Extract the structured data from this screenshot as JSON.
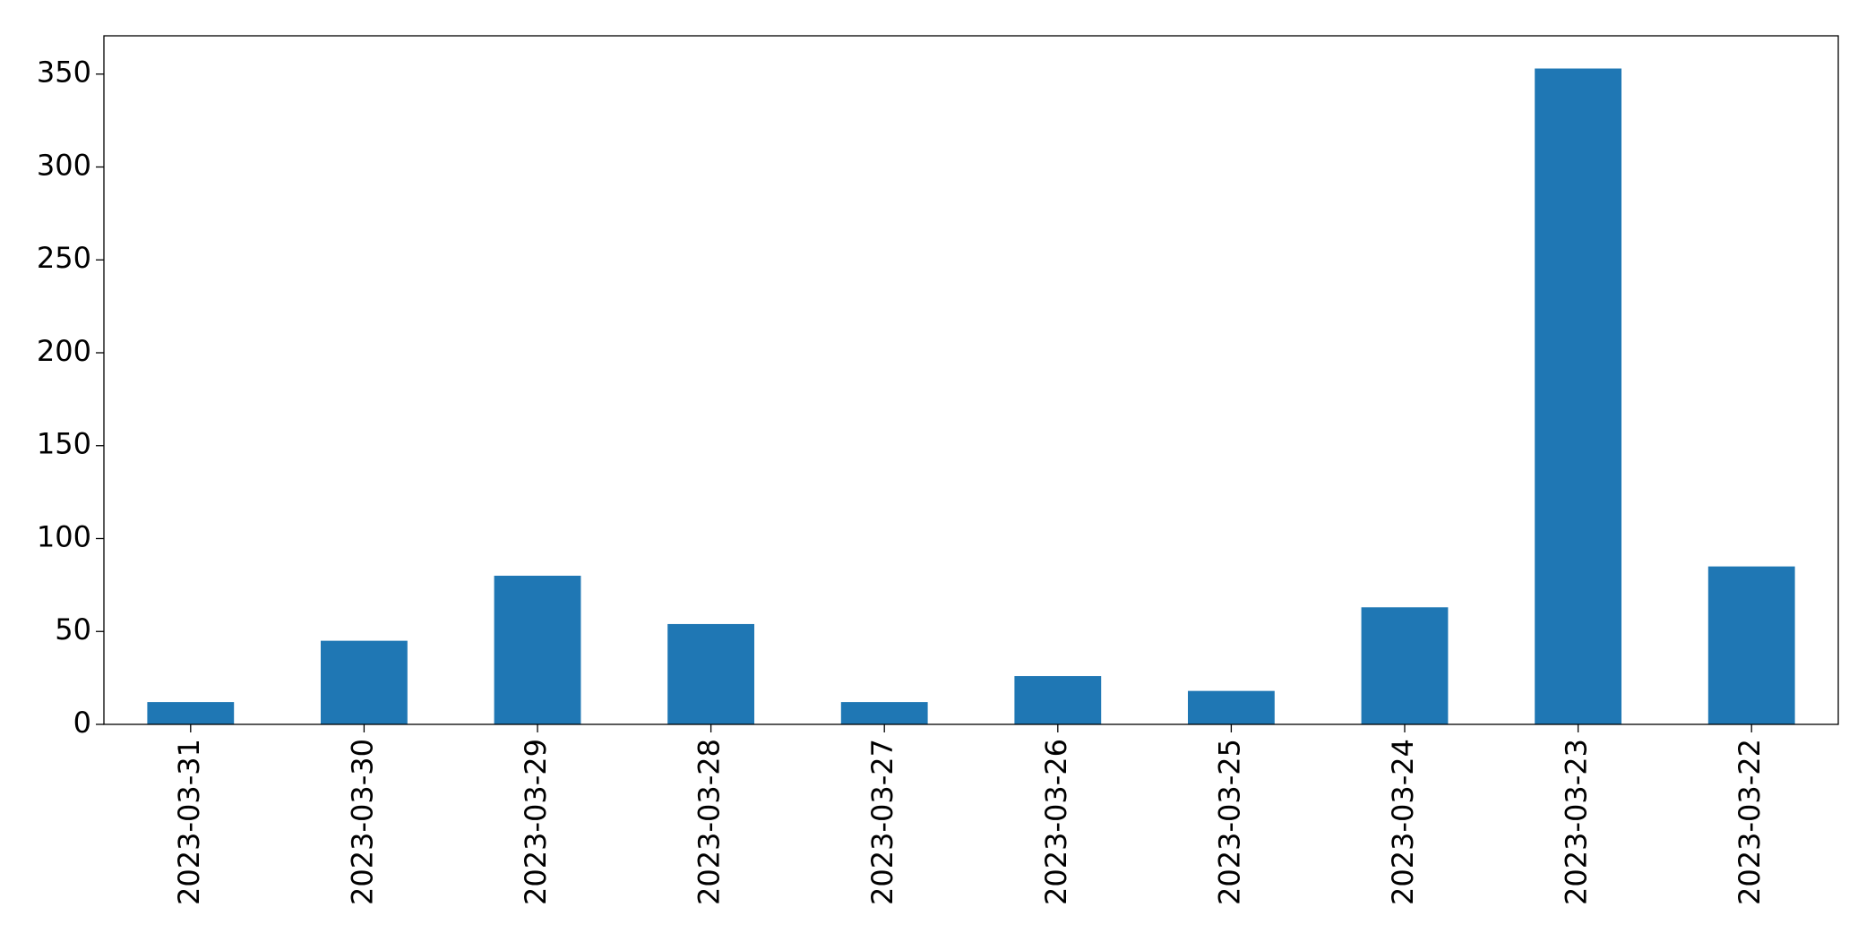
{
  "chart_data": {
    "type": "bar",
    "categories": [
      "2023-03-31",
      "2023-03-30",
      "2023-03-29",
      "2023-03-28",
      "2023-03-27",
      "2023-03-26",
      "2023-03-25",
      "2023-03-24",
      "2023-03-23",
      "2023-03-22"
    ],
    "values": [
      12,
      45,
      80,
      54,
      12,
      26,
      18,
      63,
      353,
      85
    ],
    "color": "#1f77b4",
    "ylim": [
      0,
      370.6
    ],
    "yticks": [
      0,
      50,
      100,
      150,
      200,
      250,
      300,
      350
    ],
    "grid": false
  }
}
